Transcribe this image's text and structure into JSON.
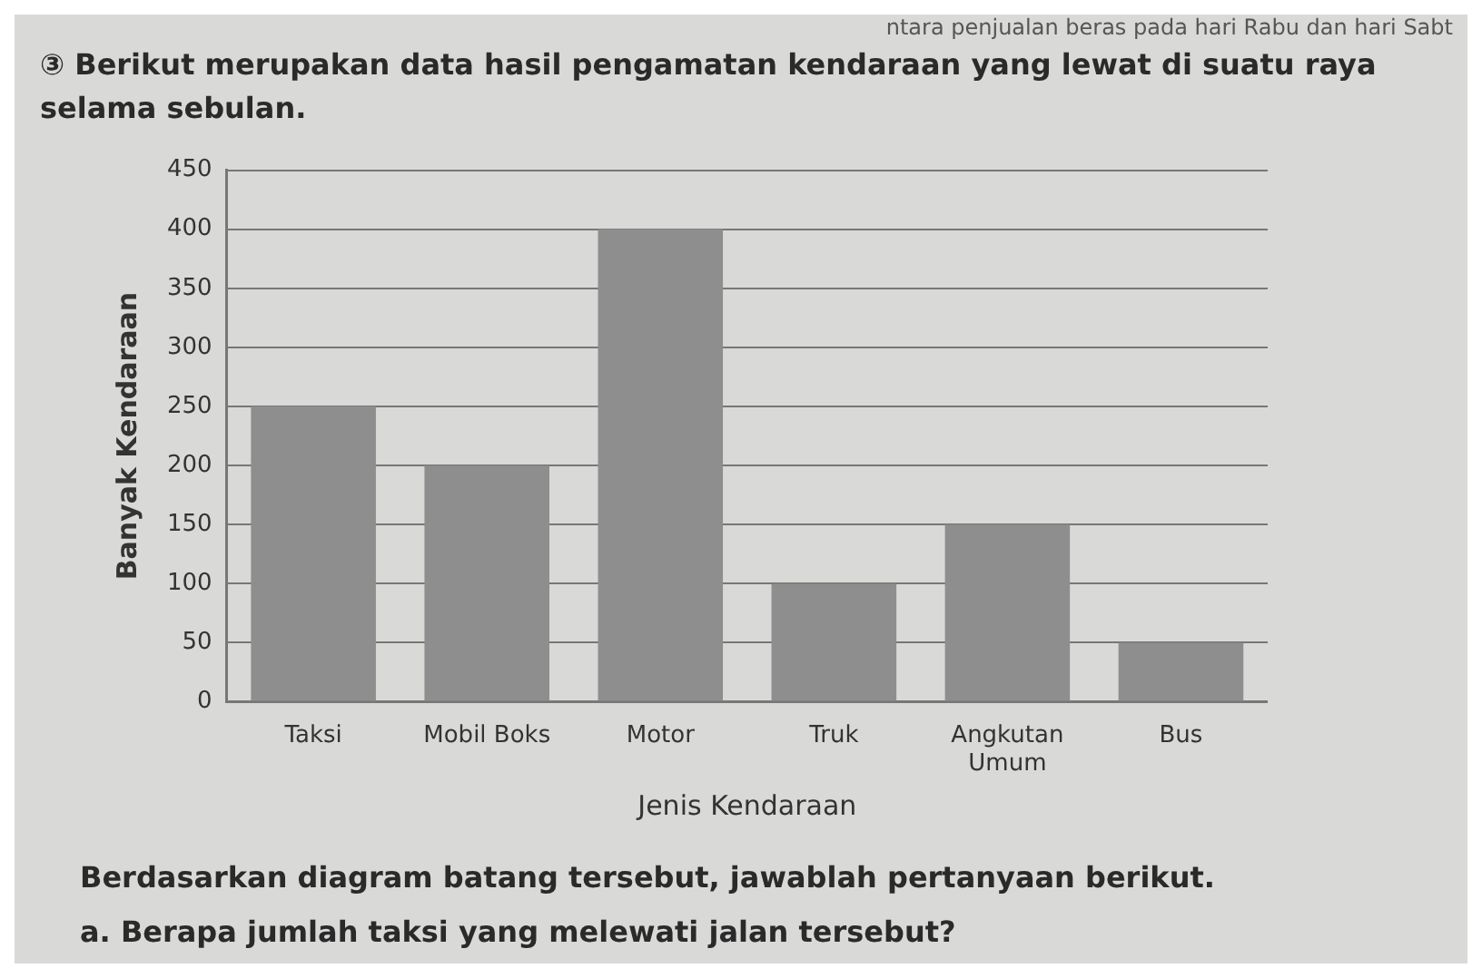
{
  "chart_data": {
    "type": "bar",
    "title": "③ Berikut merupakan data hasil pengamatan kendaraan yang lewat di suatu raya selama sebulan.",
    "xlabel": "Jenis Kendaraan",
    "ylabel": "Banyak Kendaraan",
    "categories": [
      "Taksi",
      "Mobil Boks",
      "Motor",
      "Truk",
      "Angkutan Umum",
      "Bus"
    ],
    "values": [
      250,
      200,
      400,
      100,
      150,
      50
    ],
    "color": "#8e8e8e",
    "ylim": [
      0,
      450
    ],
    "yticks": [
      0,
      50,
      100,
      150,
      200,
      250,
      300,
      350,
      400,
      450
    ],
    "grid": "y",
    "legend": false,
    "annotations": [
      "ntara penjualan beras pada hari Rabu dan hari Sabt",
      "Berdasarkan diagram batang tersebut, jawablah pertanyaan berikut.",
      "a. Berapa jumlah taksi yang melewati jalan tersebut?"
    ]
  }
}
